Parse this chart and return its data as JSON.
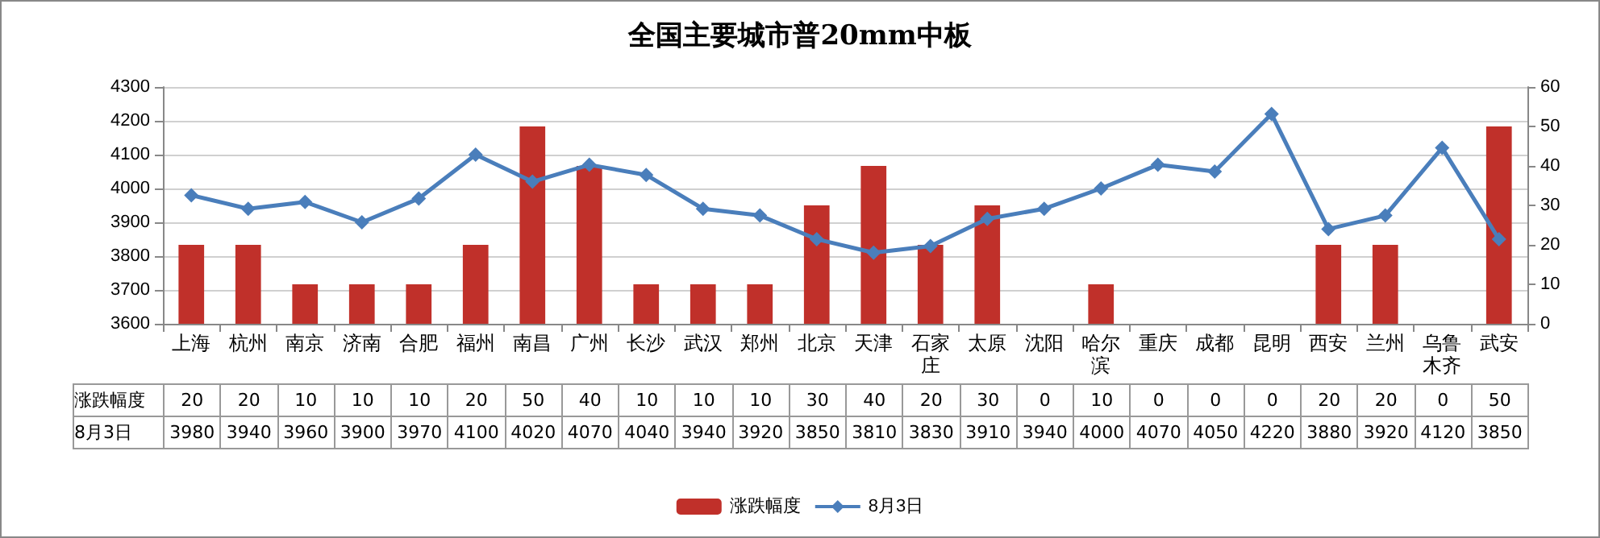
{
  "chart_data": {
    "type": "bar",
    "title": "全国主要城市普20mm中板",
    "categories": [
      "上海",
      "杭州",
      "南京",
      "济南",
      "合肥",
      "福州",
      "南昌",
      "广州",
      "长沙",
      "武汉",
      "郑州",
      "北京",
      "天津",
      "石家庄",
      "太原",
      "沈阳",
      "哈尔滨",
      "重庆",
      "成都",
      "昆明",
      "西安",
      "兰州",
      "乌鲁木齐",
      "武安"
    ],
    "series": [
      {
        "name": "涨跌幅度",
        "type": "bar",
        "axis": "y2",
        "color": "#c0302a",
        "values": [
          20,
          20,
          10,
          10,
          10,
          20,
          50,
          40,
          10,
          10,
          10,
          30,
          40,
          20,
          30,
          0,
          10,
          0,
          0,
          0,
          20,
          20,
          0,
          50
        ]
      },
      {
        "name": "8月3日",
        "type": "line",
        "axis": "y",
        "color": "#4a7ebb",
        "marker": "diamond",
        "values": [
          3980,
          3940,
          3960,
          3900,
          3970,
          4100,
          4020,
          4070,
          4040,
          3940,
          3920,
          3850,
          3810,
          3830,
          3910,
          3940,
          4000,
          4070,
          4050,
          4220,
          3880,
          3920,
          4120,
          3850
        ]
      }
    ],
    "ylim": [
      3600,
      4300
    ],
    "yticks": [
      3600,
      3700,
      3800,
      3900,
      4000,
      4100,
      4200,
      4300
    ],
    "y2lim": [
      0,
      60
    ],
    "y2ticks": [
      0,
      10,
      20,
      30,
      40,
      50,
      60
    ],
    "grid": "y",
    "legend": "bottom",
    "data_labels": true
  }
}
